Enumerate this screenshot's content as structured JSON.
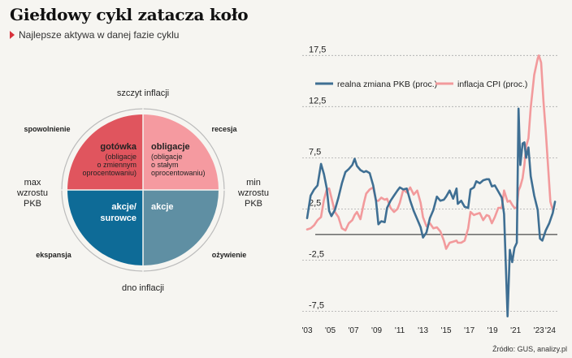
{
  "header": {
    "title": "Giełdowy cykl zatacza koło",
    "subtitle": "Najlepsze aktywa w danej fazie cyklu"
  },
  "cycle": {
    "top": "szczyt inflacji",
    "bottom": "dno inflacji",
    "left": [
      "max",
      "wzrostu",
      "PKB"
    ],
    "right": [
      "min",
      "wzrostu",
      "PKB"
    ],
    "corners": {
      "top_left": "spowolnienie",
      "top_right": "recesja",
      "bottom_left": "ekspansja",
      "bottom_right": "ożywienie"
    },
    "quadrants": {
      "top_left": {
        "title": "gotówka",
        "desc": [
          "(obligacje",
          "o zmiennym",
          "oprocentowaniu)"
        ],
        "color": "#e0555e"
      },
      "top_right": {
        "title": "obligacje",
        "desc": [
          "(obligacje",
          "o stałym",
          "oprocentowaniu)"
        ],
        "color": "#f59aa0"
      },
      "bottom_left": {
        "title": "akcje/",
        "title2": "surowce",
        "color": "#0e6b97"
      },
      "bottom_right": {
        "title": "akcje",
        "color": "#5f8fa3"
      }
    }
  },
  "chart_data": {
    "type": "line",
    "ylim": [
      -8.5,
      18
    ],
    "yticks": [
      17.5,
      12.5,
      7.5,
      2.5,
      -2.5,
      -7.5
    ],
    "ytick_labels": [
      "17,5",
      "12,5",
      "7,5",
      "2,5",
      "-2,5",
      "-7,5"
    ],
    "xlim": [
      2003,
      2024.6
    ],
    "xticks": [
      2003,
      2005,
      2007,
      2009,
      2011,
      2013,
      2015,
      2017,
      2019,
      2021,
      2023,
      2024
    ],
    "xtick_labels": [
      "'03",
      "'05",
      "'07",
      "'09",
      "'11",
      "'13",
      "'15",
      "'17",
      "'19",
      "'21",
      "'23",
      "'24"
    ],
    "series": [
      {
        "name": "realna zmiana PKB (proc.)",
        "color": "#3f6f93",
        "points": [
          [
            2003.0,
            1.6
          ],
          [
            2003.3,
            3.8
          ],
          [
            2003.6,
            4.4
          ],
          [
            2003.9,
            4.8
          ],
          [
            2004.2,
            6.9
          ],
          [
            2004.45,
            5.9
          ],
          [
            2004.7,
            4.5
          ],
          [
            2004.9,
            2.3
          ],
          [
            2005.1,
            1.8
          ],
          [
            2005.4,
            2.4
          ],
          [
            2005.7,
            3.6
          ],
          [
            2006.0,
            5.0
          ],
          [
            2006.3,
            6.1
          ],
          [
            2006.6,
            6.4
          ],
          [
            2006.9,
            6.8
          ],
          [
            2007.1,
            7.4
          ],
          [
            2007.3,
            6.7
          ],
          [
            2007.6,
            6.3
          ],
          [
            2007.9,
            6.1
          ],
          [
            2008.1,
            6.2
          ],
          [
            2008.4,
            6.0
          ],
          [
            2008.7,
            4.8
          ],
          [
            2008.95,
            3.3
          ],
          [
            2009.15,
            1.0
          ],
          [
            2009.4,
            1.3
          ],
          [
            2009.7,
            1.2
          ],
          [
            2009.9,
            2.6
          ],
          [
            2010.2,
            3.3
          ],
          [
            2010.5,
            3.8
          ],
          [
            2010.8,
            4.3
          ],
          [
            2011.0,
            4.6
          ],
          [
            2011.3,
            4.4
          ],
          [
            2011.6,
            4.5
          ],
          [
            2011.9,
            3.3
          ],
          [
            2012.2,
            2.3
          ],
          [
            2012.5,
            1.5
          ],
          [
            2012.8,
            0.7
          ],
          [
            2013.0,
            -0.3
          ],
          [
            2013.3,
            0.2
          ],
          [
            2013.6,
            1.6
          ],
          [
            2013.9,
            2.4
          ],
          [
            2014.2,
            3.7
          ],
          [
            2014.5,
            3.3
          ],
          [
            2014.8,
            3.4
          ],
          [
            2015.0,
            3.7
          ],
          [
            2015.3,
            4.3
          ],
          [
            2015.6,
            3.5
          ],
          [
            2015.9,
            4.5
          ],
          [
            2016.0,
            3.0
          ],
          [
            2016.3,
            3.3
          ],
          [
            2016.6,
            2.7
          ],
          [
            2016.9,
            2.6
          ],
          [
            2017.1,
            4.4
          ],
          [
            2017.4,
            4.6
          ],
          [
            2017.6,
            5.2
          ],
          [
            2017.9,
            5.0
          ],
          [
            2018.2,
            5.3
          ],
          [
            2018.5,
            5.4
          ],
          [
            2018.7,
            5.4
          ],
          [
            2018.95,
            4.7
          ],
          [
            2019.2,
            4.8
          ],
          [
            2019.5,
            4.2
          ],
          [
            2019.8,
            3.6
          ],
          [
            2020.0,
            2.0
          ],
          [
            2020.3,
            -8.0
          ],
          [
            2020.5,
            -1.5
          ],
          [
            2020.7,
            -2.7
          ],
          [
            2020.9,
            -1.3
          ],
          [
            2021.1,
            -0.8
          ],
          [
            2021.25,
            12.3
          ],
          [
            2021.4,
            6.8
          ],
          [
            2021.6,
            8.9
          ],
          [
            2021.75,
            9.0
          ],
          [
            2021.9,
            7.5
          ],
          [
            2022.1,
            8.5
          ],
          [
            2022.3,
            5.7
          ],
          [
            2022.6,
            3.8
          ],
          [
            2022.9,
            2.4
          ],
          [
            2023.1,
            -0.4
          ],
          [
            2023.3,
            -0.6
          ],
          [
            2023.6,
            0.4
          ],
          [
            2023.9,
            1.1
          ],
          [
            2024.2,
            2.1
          ],
          [
            2024.4,
            3.2
          ]
        ]
      },
      {
        "name": "inflacja CPI (proc.)",
        "color": "#f29a9c",
        "points": [
          [
            2003.0,
            0.5
          ],
          [
            2003.3,
            0.6
          ],
          [
            2003.6,
            0.9
          ],
          [
            2003.9,
            1.4
          ],
          [
            2004.2,
            1.7
          ],
          [
            2004.45,
            3.4
          ],
          [
            2004.7,
            4.4
          ],
          [
            2004.9,
            4.5
          ],
          [
            2005.1,
            3.6
          ],
          [
            2005.4,
            2.2
          ],
          [
            2005.7,
            1.7
          ],
          [
            2006.0,
            0.6
          ],
          [
            2006.3,
            0.4
          ],
          [
            2006.6,
            1.1
          ],
          [
            2006.9,
            1.4
          ],
          [
            2007.1,
            1.9
          ],
          [
            2007.3,
            2.2
          ],
          [
            2007.6,
            1.5
          ],
          [
            2007.9,
            3.1
          ],
          [
            2008.1,
            4.0
          ],
          [
            2008.4,
            4.4
          ],
          [
            2008.7,
            4.6
          ],
          [
            2008.95,
            3.3
          ],
          [
            2009.15,
            3.3
          ],
          [
            2009.4,
            3.6
          ],
          [
            2009.7,
            3.4
          ],
          [
            2009.9,
            3.5
          ],
          [
            2010.2,
            2.6
          ],
          [
            2010.5,
            2.2
          ],
          [
            2010.8,
            2.5
          ],
          [
            2011.0,
            3.1
          ],
          [
            2011.3,
            4.4
          ],
          [
            2011.6,
            4.1
          ],
          [
            2011.9,
            4.6
          ],
          [
            2012.2,
            3.9
          ],
          [
            2012.5,
            4.3
          ],
          [
            2012.8,
            3.1
          ],
          [
            2013.0,
            1.7
          ],
          [
            2013.3,
            0.8
          ],
          [
            2013.6,
            1.1
          ],
          [
            2013.9,
            0.6
          ],
          [
            2014.2,
            0.7
          ],
          [
            2014.5,
            0.3
          ],
          [
            2014.8,
            -0.6
          ],
          [
            2015.0,
            -1.4
          ],
          [
            2015.3,
            -0.8
          ],
          [
            2015.6,
            -0.7
          ],
          [
            2015.9,
            -0.6
          ],
          [
            2016.0,
            -0.8
          ],
          [
            2016.3,
            -0.8
          ],
          [
            2016.6,
            -0.6
          ],
          [
            2016.9,
            0.6
          ],
          [
            2017.1,
            2.2
          ],
          [
            2017.4,
            1.9
          ],
          [
            2017.6,
            2.0
          ],
          [
            2017.9,
            2.1
          ],
          [
            2018.2,
            1.4
          ],
          [
            2018.5,
            1.9
          ],
          [
            2018.7,
            1.8
          ],
          [
            2018.95,
            1.1
          ],
          [
            2019.2,
            1.7
          ],
          [
            2019.5,
            2.6
          ],
          [
            2019.8,
            2.6
          ],
          [
            2020.0,
            4.3
          ],
          [
            2020.3,
            3.2
          ],
          [
            2020.5,
            3.3
          ],
          [
            2020.7,
            2.9
          ],
          [
            2020.9,
            2.6
          ],
          [
            2021.1,
            2.6
          ],
          [
            2021.25,
            4.3
          ],
          [
            2021.4,
            4.7
          ],
          [
            2021.6,
            5.5
          ],
          [
            2021.75,
            6.8
          ],
          [
            2021.9,
            8.6
          ],
          [
            2022.1,
            9.4
          ],
          [
            2022.3,
            12.4
          ],
          [
            2022.6,
            15.6
          ],
          [
            2022.9,
            17.2
          ],
          [
            2023.0,
            17.5
          ],
          [
            2023.2,
            16.8
          ],
          [
            2023.4,
            13.0
          ],
          [
            2023.6,
            10.1
          ],
          [
            2023.8,
            6.6
          ],
          [
            2024.0,
            3.2
          ],
          [
            2024.2,
            2.4
          ]
        ]
      }
    ],
    "grid": true,
    "legend": "top"
  },
  "source": "Źródło: GUS, analizy.pl"
}
